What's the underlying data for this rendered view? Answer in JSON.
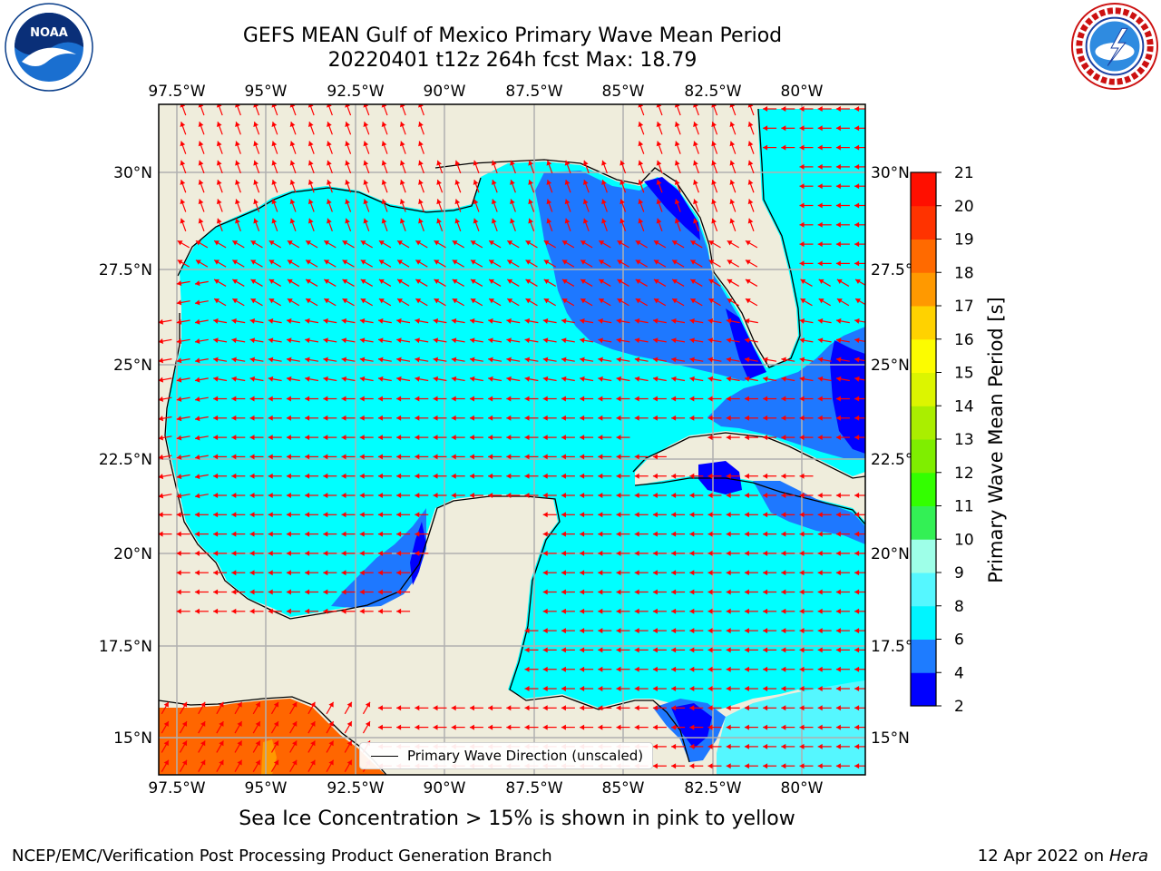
{
  "title": {
    "line1": "GEFS MEAN Gulf of Mexico Primary Wave Mean Period",
    "line2": "20220401 t12z 264h fcst   Max: 18.79"
  },
  "axes": {
    "lon_ticks": [
      "97.5°W",
      "95°W",
      "92.5°W",
      "90°W",
      "87.5°W",
      "85°W",
      "82.5°W",
      "80°W"
    ],
    "lat_ticks": [
      "30°N",
      "27.5°N",
      "25°N",
      "22.5°N",
      "20°N",
      "17.5°N",
      "15°N"
    ]
  },
  "legend": {
    "label": "Primary Wave Direction (unscaled)"
  },
  "colorbar": {
    "label": "Primary Wave Mean Period [s]",
    "ticks": [
      "2",
      "4",
      "6",
      "8",
      "9",
      "10",
      "11",
      "12",
      "13",
      "14",
      "15",
      "16",
      "17",
      "18",
      "19",
      "20",
      "21"
    ],
    "colors": [
      "#0000ff",
      "#1e7cff",
      "#00f5ff",
      "#55f7ff",
      "#9effe8",
      "#33f055",
      "#33ff00",
      "#7fee00",
      "#aaee00",
      "#dcf500",
      "#fcfc00",
      "#ffd200",
      "#ff9900",
      "#ff6a00",
      "#ff3300",
      "#ff0f00"
    ]
  },
  "map_colors": {
    "land": "#efeddc",
    "sea_6_8": "#00ffff",
    "sea_4_6": "#1e78ff",
    "sea_2_4": "#0000ff",
    "sea_8_9": "#55f7ff",
    "pacific_17_18": "#ff6600",
    "pacific_16_17": "#ff9900",
    "arrow": "#ff0000",
    "grid": "#b0b0b0"
  },
  "ice_note": "Sea Ice Concentration > 15% is shown in pink to yellow",
  "footer": {
    "left": "NCEP/EMC/Verification Post Processing Product Generation Branch",
    "right_date": "12 Apr 2022 on ",
    "right_machine": "Hera"
  },
  "logos": {
    "noaa": "NOAA",
    "nws": "NATIONAL WEATHER SERVICE"
  }
}
